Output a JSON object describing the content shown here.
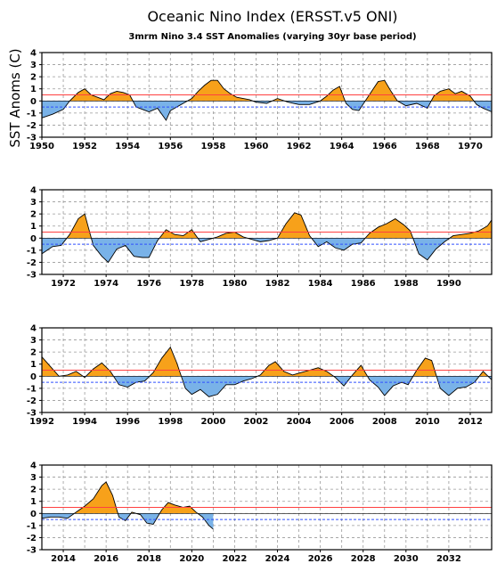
{
  "title": "Oceanic Nino Index (ERSST.v5 ONI)",
  "subtitle": "3mrm Nino 3.4 SST Anomalies (varying 30yr base period)",
  "ylabel": "SST Anoms (C)",
  "colors": {
    "positive": "#f7a11a",
    "negative": "#79b2e8",
    "upper_threshold": "#ff4040",
    "lower_threshold": "#3050ff",
    "grid": "#9a9a9a",
    "frame": "#000000"
  },
  "chart_data": [
    {
      "type": "area",
      "panel": 1,
      "xlim": [
        1950,
        1971
      ],
      "ylim": [
        -3,
        4
      ],
      "yticks": [
        -3,
        -2,
        -1,
        0,
        1,
        2,
        3,
        4
      ],
      "xtick_labels": [
        "1950",
        "1952",
        "1954",
        "1956",
        "1958",
        "1960",
        "1962",
        "1964",
        "1966",
        "1968",
        "1970"
      ],
      "thresholds": [
        0.5,
        -0.5
      ],
      "grid": true,
      "series": [
        {
          "x": [
            1950.0,
            1950.5,
            1951.0,
            1951.3,
            1951.7,
            1952.0,
            1952.3,
            1952.6,
            1952.9,
            1953.2,
            1953.5,
            1953.8,
            1954.1,
            1954.4,
            1954.7,
            1955.0,
            1955.4,
            1955.8,
            1956.0,
            1956.3,
            1956.6,
            1957.0,
            1957.3,
            1957.6,
            1957.9,
            1958.2,
            1958.5,
            1958.8,
            1959.1,
            1959.4,
            1959.7,
            1960.0,
            1960.5,
            1961.0,
            1961.5,
            1962.0,
            1962.5,
            1963.0,
            1963.3,
            1963.6,
            1963.9,
            1964.2,
            1964.5,
            1964.8,
            1965.1,
            1965.4,
            1965.7,
            1966.0,
            1966.3,
            1966.6,
            1967.0,
            1967.5,
            1968.0,
            1968.3,
            1968.6,
            1969.0,
            1969.3,
            1969.6,
            1970.0,
            1970.3,
            1970.6,
            1971.0
          ],
          "y": [
            -1.4,
            -1.1,
            -0.7,
            0.0,
            0.7,
            1.0,
            0.5,
            0.3,
            0.1,
            0.6,
            0.8,
            0.7,
            0.5,
            -0.5,
            -0.7,
            -0.9,
            -0.6,
            -1.6,
            -0.8,
            -0.5,
            -0.2,
            0.2,
            0.8,
            1.3,
            1.7,
            1.7,
            1.0,
            0.6,
            0.3,
            0.2,
            0.1,
            -0.1,
            -0.2,
            0.2,
            -0.1,
            -0.3,
            -0.3,
            0.0,
            0.4,
            0.9,
            1.2,
            -0.2,
            -0.7,
            -0.8,
            0.0,
            0.8,
            1.6,
            1.7,
            0.8,
            0.0,
            -0.4,
            -0.2,
            -0.6,
            0.4,
            0.8,
            1.0,
            0.6,
            0.8,
            0.4,
            -0.3,
            -0.6,
            -0.9
          ]
        }
      ]
    },
    {
      "type": "area",
      "panel": 2,
      "xlim": [
        1971,
        1992
      ],
      "ylim": [
        -3,
        4
      ],
      "yticks": [
        -3,
        -2,
        -1,
        0,
        1,
        2,
        3,
        4
      ],
      "xtick_labels": [
        "1972",
        "1974",
        "1976",
        "1978",
        "1980",
        "1982",
        "1984",
        "1986",
        "1988",
        "1990"
      ],
      "thresholds": [
        0.5,
        -0.5
      ],
      "grid": true,
      "series": [
        {
          "x": [
            1971.0,
            1971.5,
            1971.9,
            1972.3,
            1972.7,
            1973.0,
            1973.4,
            1973.8,
            1974.1,
            1974.5,
            1974.9,
            1975.3,
            1975.7,
            1976.0,
            1976.4,
            1976.8,
            1977.2,
            1977.6,
            1978.0,
            1978.4,
            1978.8,
            1979.2,
            1979.6,
            1980.0,
            1980.4,
            1980.8,
            1981.2,
            1981.6,
            1982.0,
            1982.4,
            1982.8,
            1983.1,
            1983.5,
            1983.9,
            1984.3,
            1984.7,
            1985.1,
            1985.5,
            1985.9,
            1986.3,
            1986.7,
            1987.1,
            1987.5,
            1987.9,
            1988.2,
            1988.6,
            1989.0,
            1989.4,
            1989.8,
            1990.2,
            1990.6,
            1991.0,
            1991.4,
            1991.8,
            1992.0
          ],
          "y": [
            -1.3,
            -0.7,
            -0.6,
            0.3,
            1.6,
            2.0,
            -0.6,
            -1.5,
            -2.0,
            -0.9,
            -0.6,
            -1.5,
            -1.6,
            -1.6,
            -0.2,
            0.7,
            0.3,
            0.2,
            0.7,
            -0.3,
            -0.1,
            0.1,
            0.4,
            0.5,
            0.1,
            -0.1,
            -0.3,
            -0.2,
            0.0,
            1.2,
            2.1,
            1.9,
            0.2,
            -0.7,
            -0.3,
            -0.8,
            -1.0,
            -0.5,
            -0.4,
            0.4,
            0.9,
            1.2,
            1.6,
            1.1,
            0.6,
            -1.3,
            -1.8,
            -0.9,
            -0.3,
            0.2,
            0.3,
            0.4,
            0.6,
            1.0,
            1.5
          ]
        }
      ]
    },
    {
      "type": "area",
      "panel": 3,
      "xlim": [
        1992,
        2013
      ],
      "ylim": [
        -3,
        4
      ],
      "yticks": [
        -3,
        -2,
        -1,
        0,
        1,
        2,
        3,
        4
      ],
      "xtick_labels": [
        "1992",
        "1994",
        "1996",
        "1998",
        "2000",
        "2002",
        "2004",
        "2006",
        "2008",
        "2010",
        "2012"
      ],
      "thresholds": [
        0.5,
        -0.5
      ],
      "grid": true,
      "series": [
        {
          "x": [
            1992.0,
            1992.4,
            1992.8,
            1993.2,
            1993.6,
            1994.0,
            1994.4,
            1994.8,
            1995.2,
            1995.6,
            1996.0,
            1996.4,
            1996.8,
            1997.2,
            1997.6,
            1998.0,
            1998.3,
            1998.7,
            1999.0,
            1999.4,
            1999.8,
            2000.2,
            2000.6,
            2001.0,
            2001.4,
            2001.8,
            2002.2,
            2002.6,
            2002.9,
            2003.3,
            2003.7,
            2004.1,
            2004.5,
            2004.9,
            2005.3,
            2005.7,
            2006.1,
            2006.5,
            2006.9,
            2007.3,
            2007.7,
            2008.0,
            2008.4,
            2008.8,
            2009.1,
            2009.5,
            2009.9,
            2010.2,
            2010.6,
            2011.0,
            2011.4,
            2011.8,
            2012.2,
            2012.6,
            2013.0
          ],
          "y": [
            1.6,
            0.8,
            0.0,
            0.1,
            0.4,
            -0.1,
            0.6,
            1.1,
            0.4,
            -0.7,
            -0.9,
            -0.5,
            -0.4,
            0.3,
            1.5,
            2.4,
            1.1,
            -1.0,
            -1.5,
            -1.1,
            -1.7,
            -1.5,
            -0.7,
            -0.7,
            -0.4,
            -0.2,
            0.1,
            0.9,
            1.2,
            0.4,
            0.1,
            0.3,
            0.5,
            0.7,
            0.4,
            -0.1,
            -0.8,
            0.1,
            0.9,
            -0.3,
            -0.9,
            -1.6,
            -0.8,
            -0.5,
            -0.7,
            0.5,
            1.5,
            1.3,
            -1.0,
            -1.6,
            -1.0,
            -0.9,
            -0.5,
            0.4,
            -0.3
          ]
        }
      ]
    },
    {
      "type": "area",
      "panel": 4,
      "xlim": [
        2013,
        2034
      ],
      "ylim": [
        -3,
        4
      ],
      "yticks": [
        -3,
        -2,
        -1,
        0,
        1,
        2,
        3,
        4
      ],
      "xtick_labels": [
        "2014",
        "2016",
        "2018",
        "2020",
        "2022",
        "2024",
        "2026",
        "2028",
        "2030",
        "2032"
      ],
      "thresholds": [
        0.5,
        -0.5
      ],
      "grid": true,
      "series": [
        {
          "x": [
            2013.0,
            2013.4,
            2013.8,
            2014.2,
            2014.6,
            2015.0,
            2015.4,
            2015.8,
            2016.0,
            2016.3,
            2016.6,
            2016.9,
            2017.2,
            2017.6,
            2017.9,
            2018.2,
            2018.6,
            2018.9,
            2019.2,
            2019.6,
            2019.9,
            2020.2,
            2020.5,
            2020.8,
            2021.0
          ],
          "y": [
            -0.4,
            -0.3,
            -0.3,
            -0.4,
            0.1,
            0.6,
            1.2,
            2.3,
            2.6,
            1.5,
            -0.3,
            -0.6,
            0.1,
            -0.1,
            -0.8,
            -0.9,
            0.3,
            0.9,
            0.7,
            0.5,
            0.6,
            0.1,
            -0.3,
            -1.0,
            -1.3
          ]
        }
      ]
    }
  ]
}
